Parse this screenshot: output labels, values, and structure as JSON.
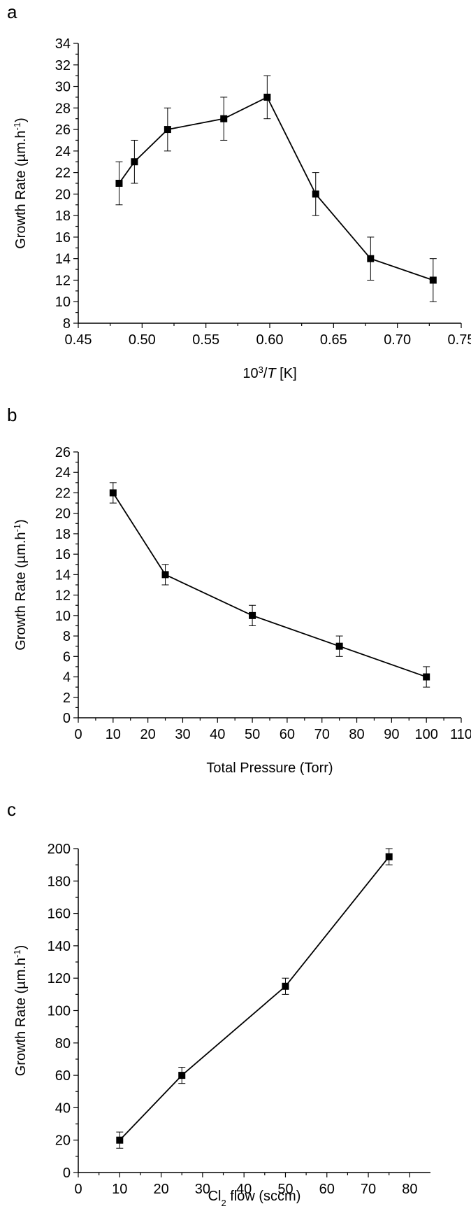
{
  "panels": [
    {
      "letter": "a"
    },
    {
      "letter": "b"
    },
    {
      "letter": "c"
    }
  ],
  "chart_data": [
    {
      "type": "line",
      "xlabel": "10³/T [K]",
      "xlabel_parts": {
        "base": "10",
        "sup": "3",
        "slash": "/",
        "italic": "T",
        "unit": " [K]"
      },
      "ylabel": "Growth Rate (µm.h⁻¹)",
      "ylabel_parts": {
        "base": "Growth Rate (µm.h",
        "sup": "-1",
        "close": ")"
      },
      "xlim": [
        0.45,
        0.75
      ],
      "ylim": [
        8,
        34
      ],
      "xticks": [
        0.45,
        0.5,
        0.55,
        0.6,
        0.65,
        0.7,
        0.75
      ],
      "xtick_labels": [
        "0.45",
        "0.50",
        "0.55",
        "0.60",
        "0.65",
        "0.70",
        "0.75"
      ],
      "yticks": [
        8,
        10,
        12,
        14,
        16,
        18,
        20,
        22,
        24,
        26,
        28,
        30,
        32,
        34
      ],
      "ytick_labels": [
        "8",
        "10",
        "12",
        "14",
        "16",
        "18",
        "20",
        "22",
        "24",
        "26",
        "28",
        "30",
        "32",
        "34"
      ],
      "x": [
        0.482,
        0.494,
        0.52,
        0.564,
        0.598,
        0.636,
        0.679,
        0.728
      ],
      "y": [
        21,
        23,
        26,
        27,
        29,
        20,
        14,
        12
      ],
      "err": [
        2,
        2,
        2,
        2,
        2,
        2,
        2,
        2
      ],
      "grid": false,
      "marker": "square"
    },
    {
      "type": "line",
      "xlabel": "Total Pressure (Torr)",
      "ylabel": "Growth Rate (µm.h⁻¹)",
      "ylabel_parts": {
        "base": "Growth Rate (µm.h",
        "sup": "-1",
        "close": ")"
      },
      "xlim": [
        0,
        110
      ],
      "ylim": [
        0,
        26
      ],
      "xticks": [
        0,
        10,
        20,
        30,
        40,
        50,
        60,
        70,
        80,
        90,
        100,
        110
      ],
      "xtick_labels": [
        "0",
        "10",
        "20",
        "30",
        "40",
        "50",
        "60",
        "70",
        "80",
        "90",
        "100",
        "110"
      ],
      "yticks": [
        0,
        2,
        4,
        6,
        8,
        10,
        12,
        14,
        16,
        18,
        20,
        22,
        24,
        26
      ],
      "ytick_labels": [
        "0",
        "2",
        "4",
        "6",
        "8",
        "10",
        "12",
        "14",
        "16",
        "18",
        "20",
        "22",
        "24",
        "26"
      ],
      "x": [
        10,
        25,
        50,
        75,
        100
      ],
      "y": [
        22,
        14,
        10,
        7,
        4
      ],
      "err": [
        1,
        1,
        1,
        1,
        1
      ],
      "grid": false,
      "marker": "square"
    },
    {
      "type": "line",
      "xlabel": "Cl₂ flow (sccm)",
      "xlabel_parts": {
        "base": "Cl",
        "sub": "2",
        "rest": " flow (sccm)"
      },
      "ylabel": "Growth Rate (µm.h⁻¹)",
      "ylabel_parts": {
        "base": "Growth Rate (µm.h",
        "sup": "-1",
        "close": ")"
      },
      "xlim": [
        0,
        85
      ],
      "ylim": [
        0,
        200
      ],
      "xticks": [
        0,
        10,
        20,
        30,
        40,
        50,
        60,
        70,
        80
      ],
      "xtick_labels": [
        "0",
        "10",
        "20",
        "30",
        "40",
        "50",
        "60",
        "70",
        "80"
      ],
      "yticks": [
        0,
        20,
        40,
        60,
        80,
        100,
        120,
        140,
        160,
        180,
        200
      ],
      "ytick_labels": [
        "0",
        "20",
        "40",
        "60",
        "80",
        "100",
        "120",
        "140",
        "160",
        "180",
        "200"
      ],
      "x": [
        10,
        25,
        50,
        75
      ],
      "y": [
        20,
        60,
        115,
        195
      ],
      "err": [
        5,
        5,
        5,
        5
      ],
      "grid": false,
      "marker": "square"
    }
  ]
}
